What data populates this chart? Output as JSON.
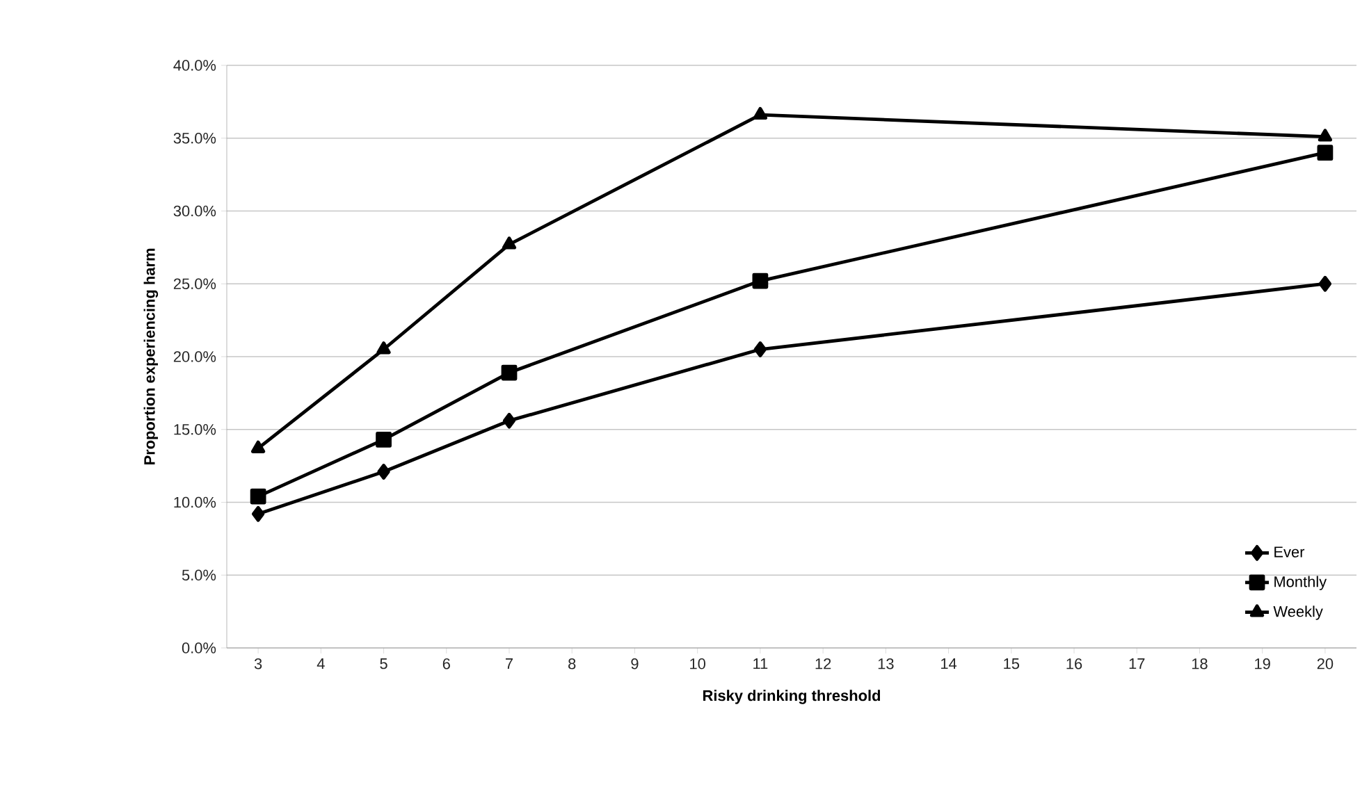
{
  "chart_data": {
    "type": "line",
    "xlabel": "Risky drinking threshold",
    "ylabel": "Proportion experiencing harm",
    "xlim": [
      2.5,
      20.5
    ],
    "xticks": [
      3,
      4,
      5,
      6,
      7,
      8,
      9,
      10,
      11,
      12,
      13,
      14,
      15,
      16,
      17,
      18,
      19,
      20
    ],
    "ylim": [
      0,
      40
    ],
    "yticks": [
      {
        "value": 0,
        "label": "0.0%"
      },
      {
        "value": 5,
        "label": "5.0%"
      },
      {
        "value": 10,
        "label": "10.0%"
      },
      {
        "value": 15,
        "label": "15.0%"
      },
      {
        "value": 20,
        "label": "20.0%"
      },
      {
        "value": 25,
        "label": "25.0%"
      },
      {
        "value": 30,
        "label": "30.0%"
      },
      {
        "value": 35,
        "label": "35.0%"
      },
      {
        "value": 40,
        "label": "40.0%"
      }
    ],
    "grid": "y",
    "legend": "bottom right",
    "line_style": "solid",
    "x": [
      3,
      5,
      7,
      11,
      20
    ],
    "series": [
      {
        "name": "Ever",
        "color": "#000000",
        "marker": "diamond",
        "values": [
          9.2,
          12.1,
          15.6,
          20.5,
          25.0
        ]
      },
      {
        "name": "Monthly",
        "color": "#000000",
        "marker": "square",
        "values": [
          10.4,
          14.3,
          18.9,
          25.2,
          34.0
        ]
      },
      {
        "name": "Weekly",
        "color": "#000000",
        "marker": "triangle",
        "values": [
          13.7,
          20.5,
          27.7,
          36.6,
          35.1
        ]
      }
    ]
  }
}
